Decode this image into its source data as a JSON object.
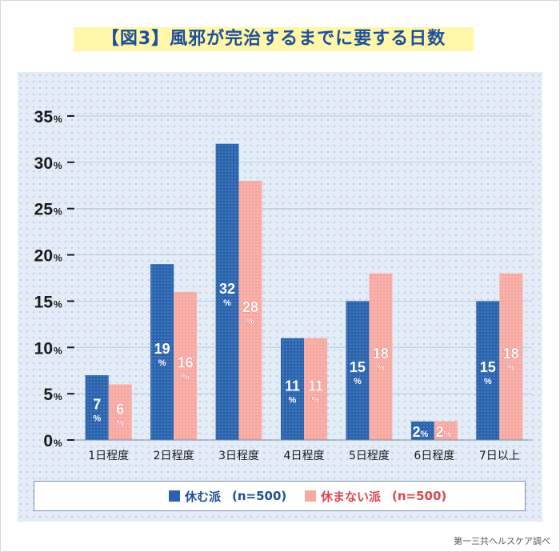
{
  "title": "【図3】風邪が完治するまでに要する日数",
  "source": "第一三共ヘルスケア調べ",
  "legend": [
    {
      "name": "休む派",
      "n": "(n=500)",
      "color": "#2a63ad"
    },
    {
      "name": "休まない派",
      "n": "(n=500)",
      "color": "#f7a9a1"
    }
  ],
  "colors": {
    "rest": "#2a63ad",
    "norest": "#f7a9a1",
    "norest_text": "#e0454c",
    "rest_text": "#1e4e9b",
    "axis": "#1a1a1a"
  },
  "chart_data": {
    "type": "bar",
    "categories": [
      "1日程度",
      "2日程度",
      "3日程度",
      "4日程度",
      "5日程度",
      "6日程度",
      "7日以上"
    ],
    "series": [
      {
        "name": "休む派",
        "values": [
          7,
          19,
          32,
          11,
          15,
          2,
          15
        ]
      },
      {
        "name": "休まない派",
        "values": [
          6,
          16,
          28,
          11,
          18,
          2,
          18
        ]
      }
    ],
    "ylim": [
      0,
      35
    ],
    "yticks": [
      0,
      5,
      10,
      15,
      20,
      25,
      30,
      35
    ],
    "ytick_unit": "%",
    "value_labels": [
      [
        "7%",
        "19%",
        "32%",
        "11%",
        "15%",
        "2%",
        "15%"
      ],
      [
        "6%",
        "16%",
        "28%",
        "11%",
        "18%",
        "2%",
        "18%"
      ]
    ],
    "grid": true
  }
}
